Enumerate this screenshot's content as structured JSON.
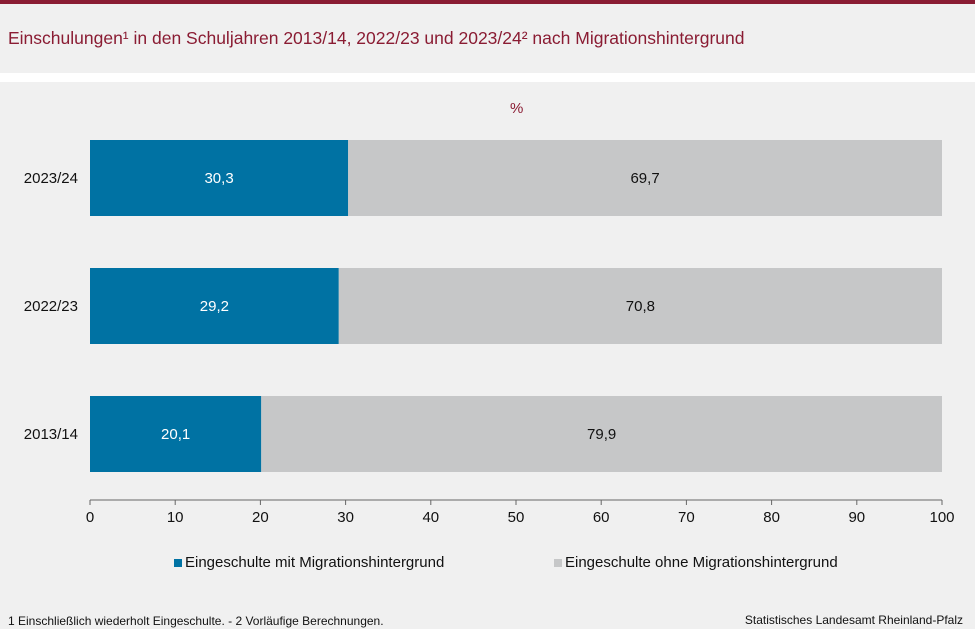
{
  "header": {
    "title": "Einschulungen¹ in den Schuljahren 2013/14, 2022/23 und 2023/24² nach Migrationshintergrund",
    "unit": "%"
  },
  "colors": {
    "accent": "#8a1c33",
    "series_with": "#0072a3",
    "series_without": "#c6c7c8"
  },
  "chart_data": {
    "type": "bar",
    "orientation": "horizontal",
    "stacked": true,
    "categories": [
      "2023/24",
      "2022/23",
      "2013/14"
    ],
    "series": [
      {
        "name": "Eingeschulte mit Migrationshintergrund",
        "values": [
          30.3,
          29.2,
          20.1
        ],
        "labels": [
          "30,3",
          "29,2",
          "20,1"
        ]
      },
      {
        "name": "Eingeschulte ohne Migrationshintergrund",
        "values": [
          69.7,
          70.8,
          79.9
        ],
        "labels": [
          "69,7",
          "70,8",
          "79,9"
        ]
      }
    ],
    "xlim": [
      0,
      100
    ],
    "xticks": [
      0,
      10,
      20,
      30,
      40,
      50,
      60,
      70,
      80,
      90,
      100
    ],
    "grid": false,
    "legend_position": "bottom"
  },
  "footer": {
    "footnote": "1 Einschließlich wiederholt  Eingeschulte.  - 2 Vorläufige  Berechnungen.",
    "source": "Statistisches Landesamt  Rheinland-Pfalz"
  }
}
